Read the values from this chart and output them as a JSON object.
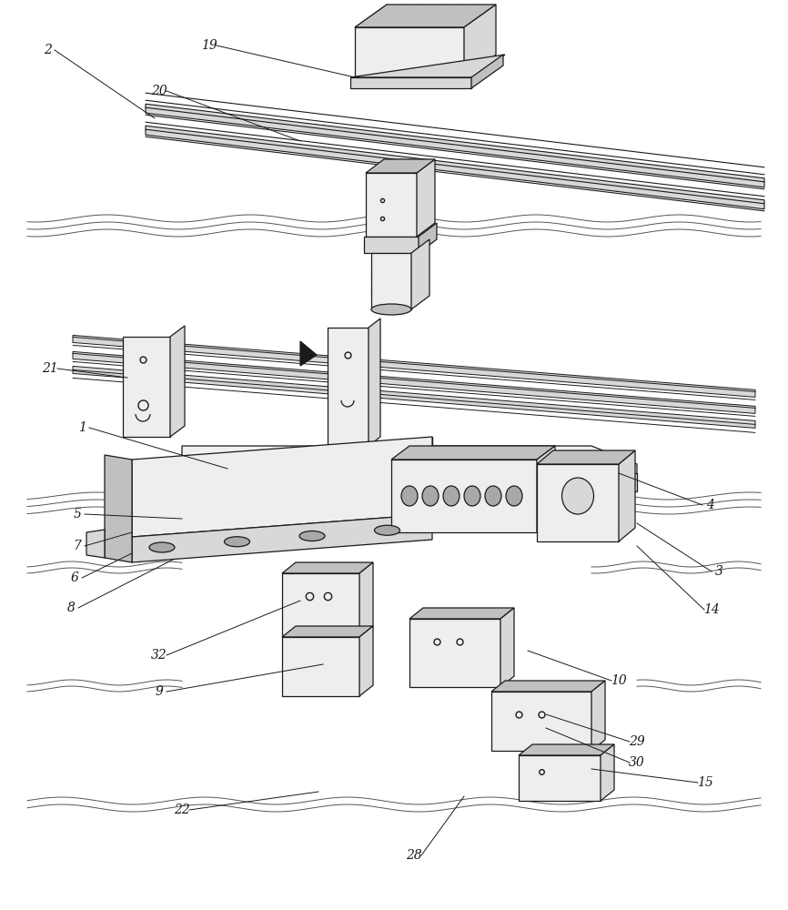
{
  "bg_color": "#ffffff",
  "line_color": "#1a1a1a",
  "lw": 0.9,
  "fig_w": 8.66,
  "fig_h": 10.0,
  "dpi": 100,
  "label_fs": 10,
  "wavy_color": "#555555",
  "wavy_lw": 0.7,
  "fill_light": "#eeeeee",
  "fill_mid": "#d8d8d8",
  "fill_dark": "#c0c0c0",
  "fill_darker": "#a8a8a8"
}
